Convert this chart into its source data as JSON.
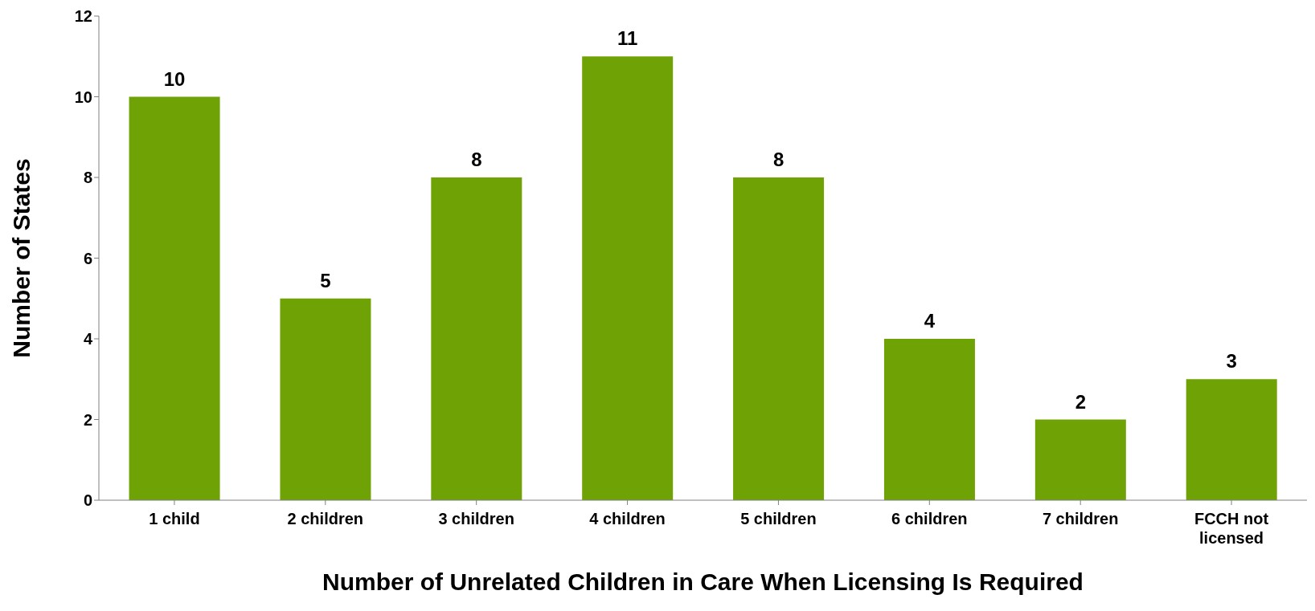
{
  "chart_data": {
    "type": "bar",
    "xlabel": "Number of Unrelated Children in Care When Licensing Is Required",
    "ylabel": "Number of States",
    "categories": [
      "1 child",
      "2 children",
      "3 children",
      "4 children",
      "5 children",
      "6 children",
      "7 children",
      "FCCH not licensed"
    ],
    "values": [
      10,
      5,
      8,
      11,
      8,
      4,
      2,
      3
    ],
    "color": "#6fa305",
    "ylim": [
      0,
      12
    ],
    "yticks": [
      0,
      2,
      4,
      6,
      8,
      10,
      12
    ],
    "grid": false,
    "data_labels": true
  }
}
